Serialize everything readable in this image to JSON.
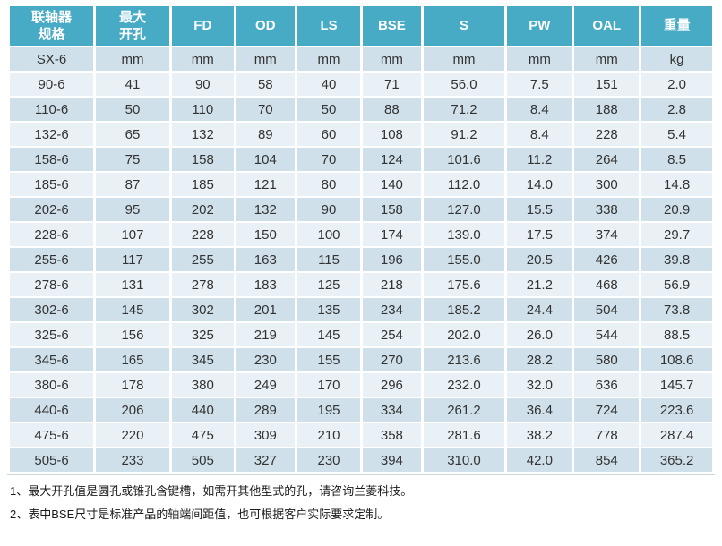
{
  "colors": {
    "header_bg": "#47abc5",
    "header_text": "#ffffff",
    "row_dark": "#cfe0ea",
    "row_light": "#eaf1f6",
    "body_text": "#333333"
  },
  "page": {
    "notes": [
      "1、最大开孔值是圆孔或锥孔含键槽，如需开其他型式的孔，请咨询兰菱科技。",
      "2、表中BSE尺寸是标准产品的轴端间距值，也可根据客户实际要求定制。"
    ]
  },
  "chart_data": {
    "type": "table",
    "columns": [
      "联轴器\n规格",
      "最大\n开孔",
      "FD",
      "OD",
      "LS",
      "BSE",
      "S",
      "PW",
      "OAL",
      "重量"
    ],
    "units_row": [
      "SX-6",
      "mm",
      "mm",
      "mm",
      "mm",
      "mm",
      "mm",
      "mm",
      "mm",
      "kg"
    ],
    "rows": [
      [
        "90-6",
        "41",
        "90",
        "58",
        "40",
        "71",
        "56.0",
        "7.5",
        "151",
        "2.0"
      ],
      [
        "110-6",
        "50",
        "110",
        "70",
        "50",
        "88",
        "71.2",
        "8.4",
        "188",
        "2.8"
      ],
      [
        "132-6",
        "65",
        "132",
        "89",
        "60",
        "108",
        "91.2",
        "8.4",
        "228",
        "5.4"
      ],
      [
        "158-6",
        "75",
        "158",
        "104",
        "70",
        "124",
        "101.6",
        "11.2",
        "264",
        "8.5"
      ],
      [
        "185-6",
        "87",
        "185",
        "121",
        "80",
        "140",
        "112.0",
        "14.0",
        "300",
        "14.8"
      ],
      [
        "202-6",
        "95",
        "202",
        "132",
        "90",
        "158",
        "127.0",
        "15.5",
        "338",
        "20.9"
      ],
      [
        "228-6",
        "107",
        "228",
        "150",
        "100",
        "174",
        "139.0",
        "17.5",
        "374",
        "29.7"
      ],
      [
        "255-6",
        "117",
        "255",
        "163",
        "115",
        "196",
        "155.0",
        "20.5",
        "426",
        "39.8"
      ],
      [
        "278-6",
        "131",
        "278",
        "183",
        "125",
        "218",
        "175.6",
        "21.2",
        "468",
        "56.9"
      ],
      [
        "302-6",
        "145",
        "302",
        "201",
        "135",
        "234",
        "185.2",
        "24.4",
        "504",
        "73.8"
      ],
      [
        "325-6",
        "156",
        "325",
        "219",
        "145",
        "254",
        "202.0",
        "26.0",
        "544",
        "88.5"
      ],
      [
        "345-6",
        "165",
        "345",
        "230",
        "155",
        "270",
        "213.6",
        "28.2",
        "580",
        "108.6"
      ],
      [
        "380-6",
        "178",
        "380",
        "249",
        "170",
        "296",
        "232.0",
        "32.0",
        "636",
        "145.7"
      ],
      [
        "440-6",
        "206",
        "440",
        "289",
        "195",
        "334",
        "261.2",
        "36.4",
        "724",
        "223.6"
      ],
      [
        "475-6",
        "220",
        "475",
        "309",
        "210",
        "358",
        "281.6",
        "38.2",
        "778",
        "287.4"
      ],
      [
        "505-6",
        "233",
        "505",
        "327",
        "230",
        "394",
        "310.0",
        "42.0",
        "854",
        "365.2"
      ]
    ]
  }
}
